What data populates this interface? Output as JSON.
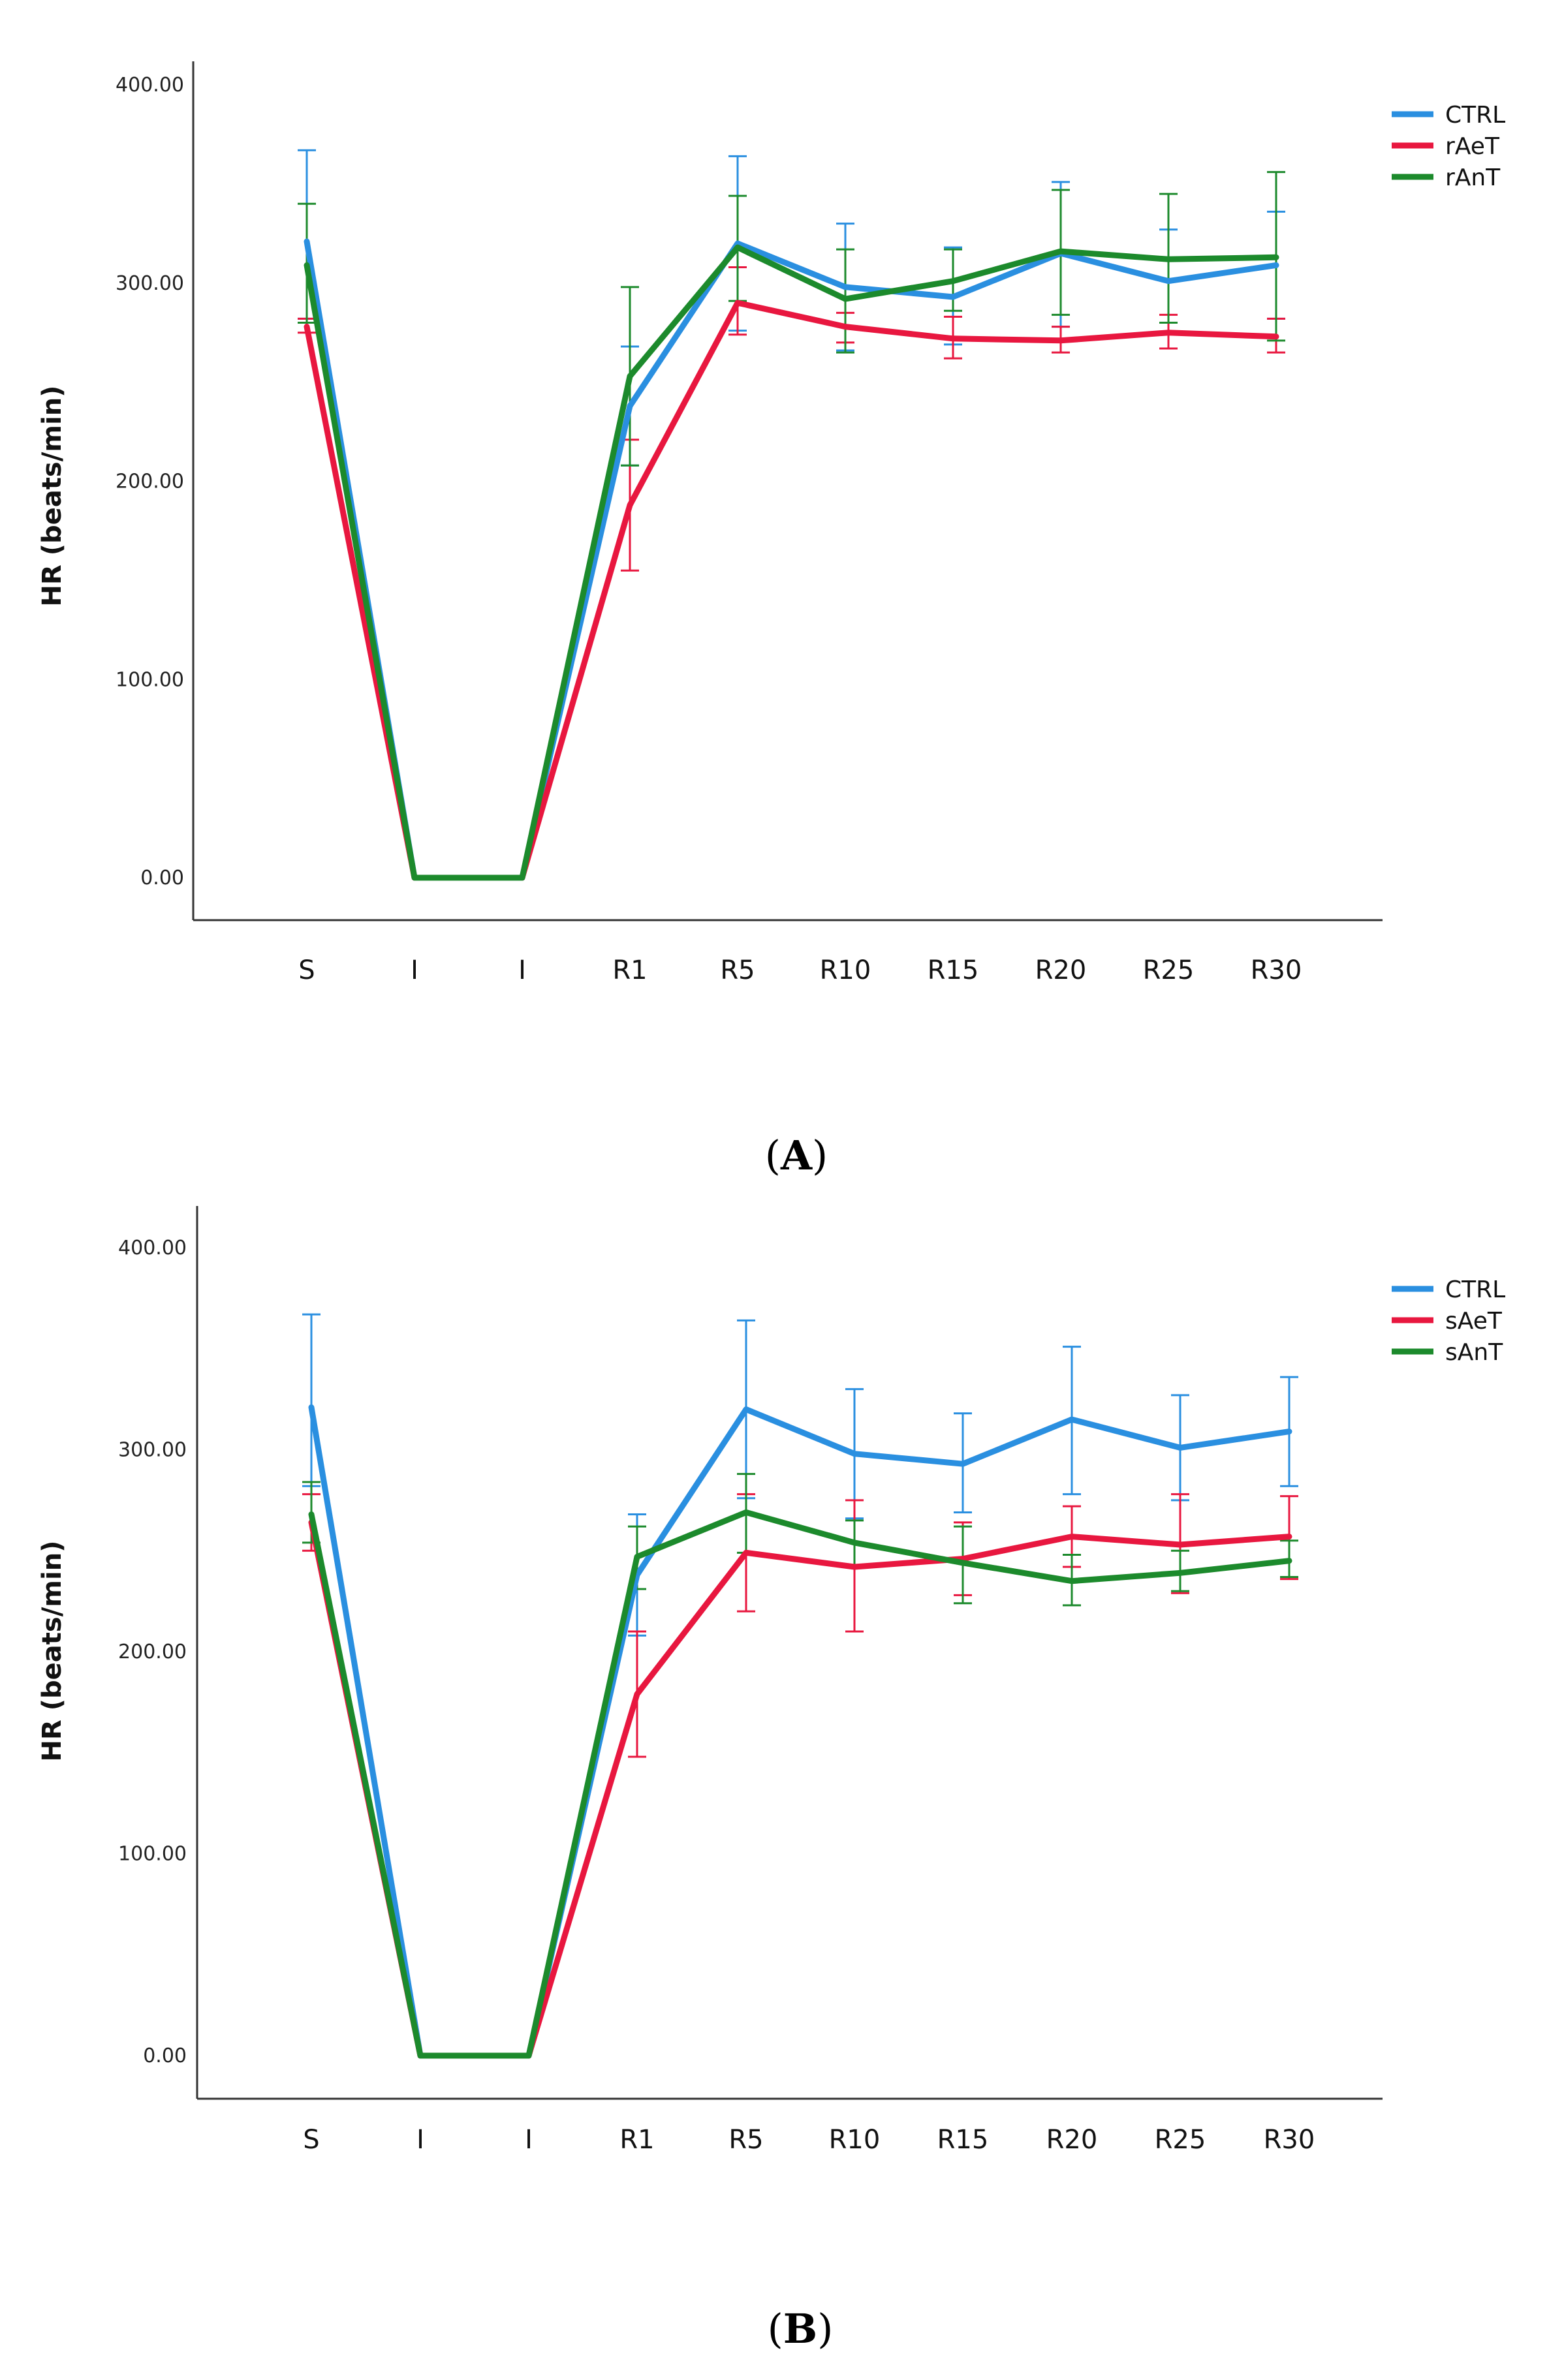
{
  "chart_data": [
    {
      "type": "line",
      "panel_label": "A",
      "ylabel": "HR (beats/min)",
      "xlabel": "",
      "ylim": [
        0,
        400
      ],
      "yticks": [
        "0.00",
        "100.00",
        "200.00",
        "300.00",
        "400.00"
      ],
      "categories": [
        "S",
        "I",
        "I",
        "R1",
        "R5",
        "R10",
        "R15",
        "R20",
        "R25",
        "R30"
      ],
      "legend_position": "top-right",
      "error_bars": true,
      "series": [
        {
          "name": "CTRL",
          "color": "#2a8fe0",
          "values": [
            321,
            0,
            0,
            238,
            320,
            298,
            293,
            315,
            301,
            309
          ],
          "err_low": [
            282,
            0,
            0,
            208,
            276,
            266,
            269,
            278,
            275,
            282
          ],
          "err_high": [
            367,
            0,
            0,
            268,
            364,
            330,
            318,
            351,
            327,
            336
          ]
        },
        {
          "name": "rAeT",
          "color": "#e8173f",
          "values": [
            278,
            0,
            0,
            188,
            290,
            278,
            272,
            271,
            275,
            273
          ],
          "err_low": [
            275,
            0,
            0,
            155,
            274,
            270,
            262,
            265,
            267,
            265
          ],
          "err_high": [
            282,
            0,
            0,
            221,
            308,
            285,
            283,
            278,
            284,
            282
          ]
        },
        {
          "name": "rAnT",
          "color": "#1c8a2c",
          "values": [
            309,
            0,
            0,
            253,
            318,
            292,
            301,
            316,
            312,
            313
          ],
          "err_low": [
            280,
            0,
            0,
            208,
            291,
            265,
            286,
            284,
            280,
            271
          ],
          "err_high": [
            340,
            0,
            0,
            298,
            344,
            317,
            317,
            347,
            345,
            356
          ]
        }
      ]
    },
    {
      "type": "line",
      "panel_label": "B",
      "ylabel": "HR (beats/min)",
      "xlabel": "",
      "ylim": [
        0,
        400
      ],
      "yticks": [
        "0.00",
        "100.00",
        "200.00",
        "300.00",
        "400.00"
      ],
      "categories": [
        "S",
        "I",
        "I",
        "R1",
        "R5",
        "R10",
        "R15",
        "R20",
        "R25",
        "R30"
      ],
      "legend_position": "top-right",
      "error_bars": true,
      "series": [
        {
          "name": "CTRL",
          "color": "#2a8fe0",
          "values": [
            321,
            0,
            0,
            238,
            320,
            298,
            293,
            315,
            301,
            309
          ],
          "err_low": [
            282,
            0,
            0,
            208,
            276,
            266,
            269,
            278,
            275,
            282
          ],
          "err_high": [
            367,
            0,
            0,
            268,
            364,
            330,
            318,
            351,
            327,
            336
          ]
        },
        {
          "name": "sAeT",
          "color": "#e8173f",
          "values": [
            264,
            0,
            0,
            179,
            249,
            242,
            246,
            257,
            253,
            257
          ],
          "err_low": [
            250,
            0,
            0,
            148,
            220,
            210,
            228,
            242,
            229,
            236
          ],
          "err_high": [
            278,
            0,
            0,
            210,
            278,
            275,
            264,
            272,
            278,
            277
          ]
        },
        {
          "name": "sAnT",
          "color": "#1c8a2c",
          "values": [
            268,
            0,
            0,
            247,
            269,
            254,
            244,
            235,
            239,
            245
          ],
          "err_low": [
            254,
            0,
            0,
            231,
            249,
            242,
            224,
            223,
            230,
            237
          ],
          "err_high": [
            284,
            0,
            0,
            262,
            288,
            265,
            262,
            248,
            250,
            255
          ]
        }
      ]
    }
  ]
}
